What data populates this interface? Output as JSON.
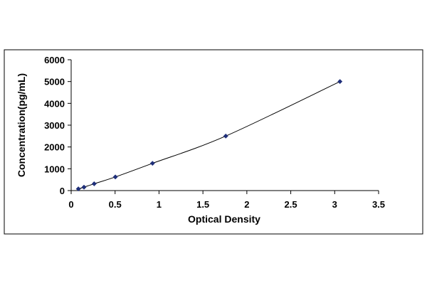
{
  "chart_data": {
    "type": "scatter",
    "title": "",
    "xlabel": "Optical Density",
    "ylabel": "Concentration(pg/mL)",
    "xlim": [
      0,
      3.5
    ],
    "ylim": [
      0,
      6000
    ],
    "x_ticks": [
      "0",
      "0.5",
      "1",
      "1.5",
      "2",
      "2.5",
      "3",
      "3.5"
    ],
    "y_ticks": [
      "0",
      "1000",
      "2000",
      "3000",
      "4000",
      "5000",
      "6000"
    ],
    "grid": false,
    "legend": "none",
    "trendline": true,
    "series": [
      {
        "x": [
          0.082,
          0.146,
          0.262,
          0.503,
          0.926,
          1.76,
          3.06
        ],
        "y": [
          78,
          156,
          312,
          625,
          1250,
          2500,
          5000
        ],
        "marker": "diamond",
        "color": "#1f2f7a"
      }
    ],
    "colors": {
      "line": "#000000",
      "marker": "#1f2f7a",
      "frame": "#000000"
    }
  }
}
